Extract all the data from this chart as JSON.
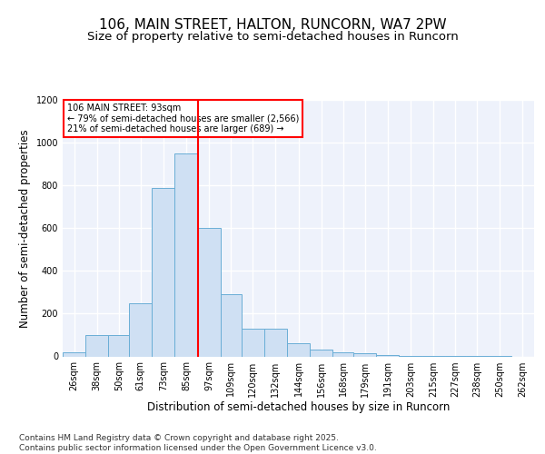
{
  "title_line1": "106, MAIN STREET, HALTON, RUNCORN, WA7 2PW",
  "title_line2": "Size of property relative to semi-detached houses in Runcorn",
  "xlabel": "Distribution of semi-detached houses by size in Runcorn",
  "ylabel": "Number of semi-detached properties",
  "bar_color": "#cfe0f3",
  "bar_edge_color": "#6aaed6",
  "background_color": "#eef2fb",
  "grid_color": "#ffffff",
  "vline_x": 97,
  "vline_color": "red",
  "annotation_text": "106 MAIN STREET: 93sqm\n← 79% of semi-detached houses are smaller (2,566)\n21% of semi-detached houses are larger (689) →",
  "footer_text": "Contains HM Land Registry data © Crown copyright and database right 2025.\nContains public sector information licensed under the Open Government Licence v3.0.",
  "bins": [
    26,
    38,
    50,
    61,
    73,
    85,
    97,
    109,
    120,
    132,
    144,
    156,
    168,
    179,
    191,
    203,
    215,
    227,
    238,
    250,
    262
  ],
  "counts": [
    20,
    100,
    100,
    250,
    790,
    950,
    600,
    290,
    130,
    130,
    60,
    30,
    20,
    15,
    5,
    3,
    2,
    1,
    1,
    1,
    0
  ],
  "ylim": [
    0,
    1200
  ],
  "yticks": [
    0,
    200,
    400,
    600,
    800,
    1000,
    1200
  ],
  "title_fontsize": 11,
  "subtitle_fontsize": 9.5,
  "axis_label_fontsize": 8.5,
  "tick_fontsize": 7,
  "footer_fontsize": 6.5
}
